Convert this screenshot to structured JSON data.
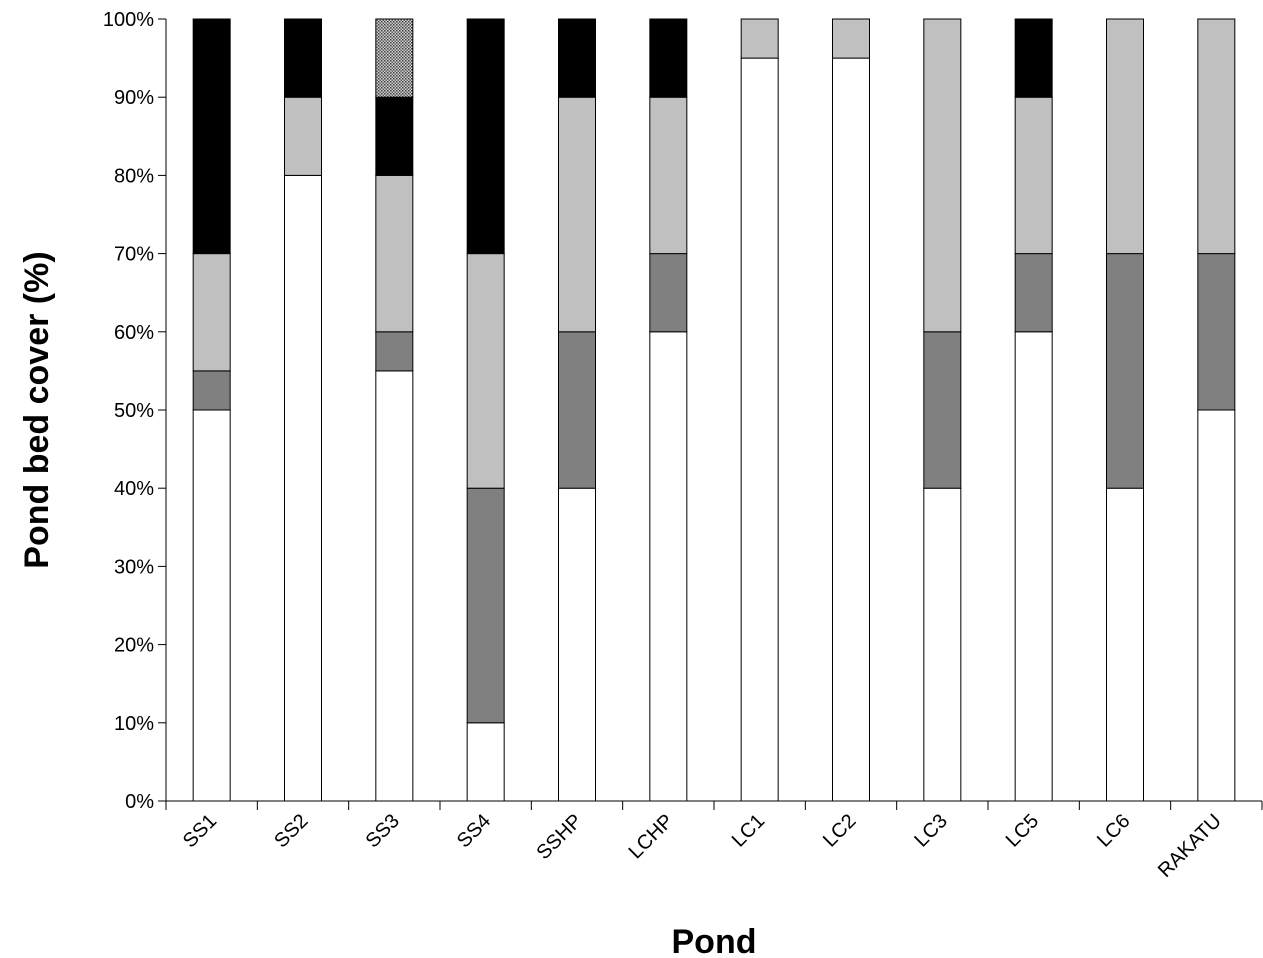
{
  "chart_data": {
    "type": "bar",
    "stacked": true,
    "stack_mode": "percent",
    "xlabel": "Pond",
    "ylabel": "Pond bed cover (%)",
    "ylim": [
      0,
      100
    ],
    "y_ticks": [
      "0%",
      "10%",
      "20%",
      "30%",
      "40%",
      "50%",
      "60%",
      "70%",
      "80%",
      "90%",
      "100%"
    ],
    "grid": false,
    "legend": "none",
    "categories": [
      "SS1",
      "SS2",
      "SS3",
      "SS4",
      "SSHP",
      "LCHP",
      "LC1",
      "LC2",
      "LC3",
      "LC5",
      "LC6",
      "RAKATU"
    ],
    "series": [
      {
        "color": "#ffffff",
        "pattern": "solid",
        "values": [
          50,
          80,
          55,
          10,
          40,
          60,
          95,
          95,
          40,
          60,
          40,
          50
        ]
      },
      {
        "color": "#808080",
        "pattern": "solid",
        "values": [
          5,
          0,
          5,
          30,
          20,
          10,
          0,
          0,
          20,
          10,
          30,
          20
        ]
      },
      {
        "color": "#c0c0c0",
        "pattern": "solid",
        "values": [
          15,
          10,
          20,
          30,
          30,
          20,
          5,
          5,
          40,
          20,
          30,
          30
        ]
      },
      {
        "color": "#000000",
        "pattern": "solid",
        "values": [
          30,
          10,
          10,
          30,
          10,
          10,
          0,
          0,
          0,
          10,
          0,
          0
        ]
      },
      {
        "color": "#a0a0a0",
        "pattern": "dotted",
        "values": [
          0,
          0,
          10,
          0,
          0,
          0,
          0,
          0,
          0,
          0,
          0,
          0
        ]
      }
    ]
  }
}
